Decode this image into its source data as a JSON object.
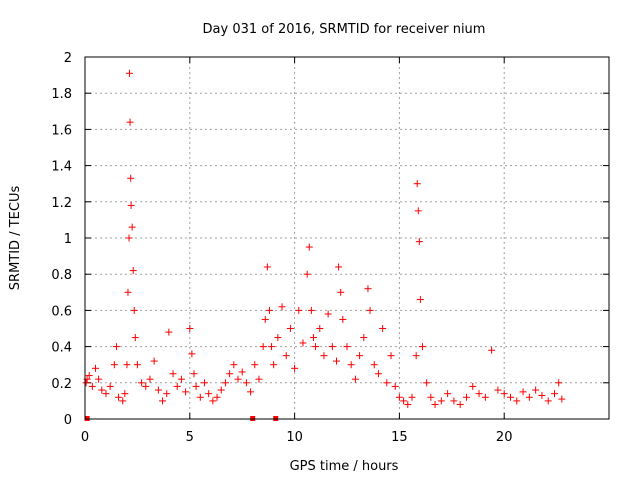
{
  "chart_data": {
    "type": "scatter",
    "title": "Day 031 of 2016, SRMTID for receiver nium",
    "xlabel": "GPS time / hours",
    "ylabel": "SRMTID / TECUs",
    "xlim": [
      0,
      25
    ],
    "ylim": [
      0,
      2
    ],
    "xticks": [
      0,
      5,
      10,
      15,
      20
    ],
    "yticks": [
      0,
      0.2,
      0.4,
      0.6,
      0.8,
      1,
      1.2,
      1.4,
      1.6,
      1.8,
      2
    ],
    "xtick_labels": [
      "0",
      "5",
      "10",
      "15",
      "20"
    ],
    "ytick_labels": [
      "0",
      "0.2",
      "0.4",
      "0.6",
      "0.8",
      "1",
      "1.2",
      "1.4",
      "1.6",
      "1.8",
      "2"
    ],
    "grid": true,
    "marker_color": "#ff0000",
    "series": [
      {
        "name": "SRMTID",
        "marker": "plus",
        "x": [
          0.05,
          0.1,
          0.2,
          0.35,
          0.5,
          0.65,
          0.8,
          1.0,
          1.2,
          1.4,
          1.5,
          1.6,
          1.8,
          1.9,
          2.0,
          2.05,
          2.1,
          2.12,
          2.15,
          2.18,
          2.2,
          2.25,
          2.3,
          2.35,
          2.4,
          2.5,
          2.7,
          2.9,
          3.1,
          3.3,
          3.5,
          3.7,
          3.9,
          4.0,
          4.2,
          4.4,
          4.6,
          4.8,
          5.0,
          5.1,
          5.2,
          5.3,
          5.5,
          5.7,
          5.9,
          6.1,
          6.3,
          6.5,
          6.7,
          6.9,
          7.1,
          7.3,
          7.5,
          7.7,
          7.9,
          8.1,
          8.3,
          8.5,
          8.6,
          8.7,
          8.8,
          8.9,
          9.0,
          9.2,
          9.4,
          9.6,
          9.8,
          10.0,
          10.2,
          10.4,
          10.6,
          10.7,
          10.8,
          10.9,
          11.0,
          11.2,
          11.4,
          11.6,
          11.8,
          12.0,
          12.1,
          12.2,
          12.3,
          12.5,
          12.7,
          12.9,
          13.1,
          13.3,
          13.5,
          13.6,
          13.8,
          14.0,
          14.2,
          14.4,
          14.6,
          14.8,
          15.0,
          15.2,
          15.4,
          15.6,
          15.8,
          15.85,
          15.9,
          15.95,
          16.0,
          16.1,
          16.3,
          16.5,
          16.7,
          17.0,
          17.3,
          17.6,
          17.9,
          18.2,
          18.5,
          18.8,
          19.1,
          19.4,
          19.7,
          20.0,
          20.3,
          20.6,
          20.9,
          21.2,
          21.5,
          21.8,
          22.1,
          22.4,
          22.6,
          22.75
        ],
        "y": [
          0.2,
          0.22,
          0.24,
          0.18,
          0.28,
          0.22,
          0.16,
          0.14,
          0.18,
          0.3,
          0.4,
          0.12,
          0.1,
          0.14,
          0.3,
          0.7,
          1.0,
          1.91,
          1.64,
          1.33,
          1.18,
          1.06,
          0.82,
          0.6,
          0.45,
          0.3,
          0.2,
          0.18,
          0.22,
          0.32,
          0.16,
          0.1,
          0.14,
          0.48,
          0.25,
          0.18,
          0.22,
          0.15,
          0.5,
          0.36,
          0.25,
          0.18,
          0.12,
          0.2,
          0.14,
          0.1,
          0.12,
          0.16,
          0.2,
          0.25,
          0.3,
          0.22,
          0.26,
          0.2,
          0.15,
          0.3,
          0.22,
          0.4,
          0.55,
          0.84,
          0.6,
          0.4,
          0.3,
          0.45,
          0.62,
          0.35,
          0.5,
          0.28,
          0.6,
          0.42,
          0.8,
          0.95,
          0.6,
          0.45,
          0.4,
          0.5,
          0.35,
          0.58,
          0.4,
          0.32,
          0.84,
          0.7,
          0.55,
          0.4,
          0.3,
          0.22,
          0.35,
          0.45,
          0.72,
          0.6,
          0.3,
          0.25,
          0.5,
          0.2,
          0.35,
          0.18,
          0.12,
          0.1,
          0.08,
          0.12,
          0.35,
          1.3,
          1.15,
          0.98,
          0.66,
          0.4,
          0.2,
          0.12,
          0.08,
          0.1,
          0.14,
          0.1,
          0.08,
          0.12,
          0.18,
          0.14,
          0.12,
          0.38,
          0.16,
          0.14,
          0.12,
          0.1,
          0.15,
          0.12,
          0.16,
          0.13,
          0.1,
          0.14,
          0.2,
          0.11
        ]
      }
    ],
    "gap_markers_x": [
      0.1,
      8.0,
      9.1
    ]
  }
}
